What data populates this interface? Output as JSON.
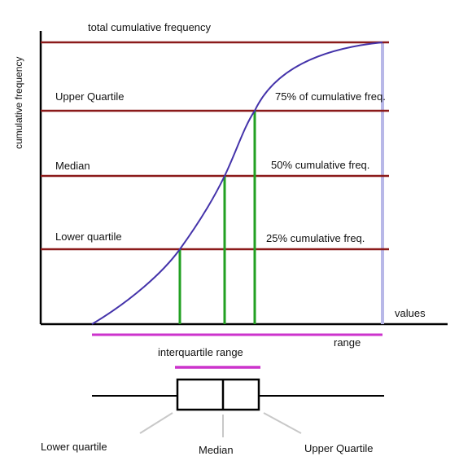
{
  "diagram": {
    "title_line": "total cumulative frequency",
    "y_axis_label": "cumulative frequency",
    "x_axis_label": "values",
    "quartile_lines": {
      "upper": {
        "name": "Upper Quartile",
        "desc": "75% of cumulative freq."
      },
      "median": {
        "name": "Median",
        "desc": "50% cumulative freq."
      },
      "lower": {
        "name": "Lower quartile",
        "desc": "25% cumulative freq."
      }
    },
    "range_label": "range",
    "iqr_label": "interquartile range",
    "boxplot": {
      "lower": "Lower quartile",
      "median": "Median",
      "upper": "Upper Quartile"
    }
  },
  "colors": {
    "axis": "#000000",
    "reference_lines": "#8b1a1a",
    "curve": "#4433aa",
    "quartile_verticals": "#22a022",
    "range_bar": "#cc33cc",
    "max_vertical": "#b8b8e8",
    "pointer": "#c8c8c8"
  }
}
